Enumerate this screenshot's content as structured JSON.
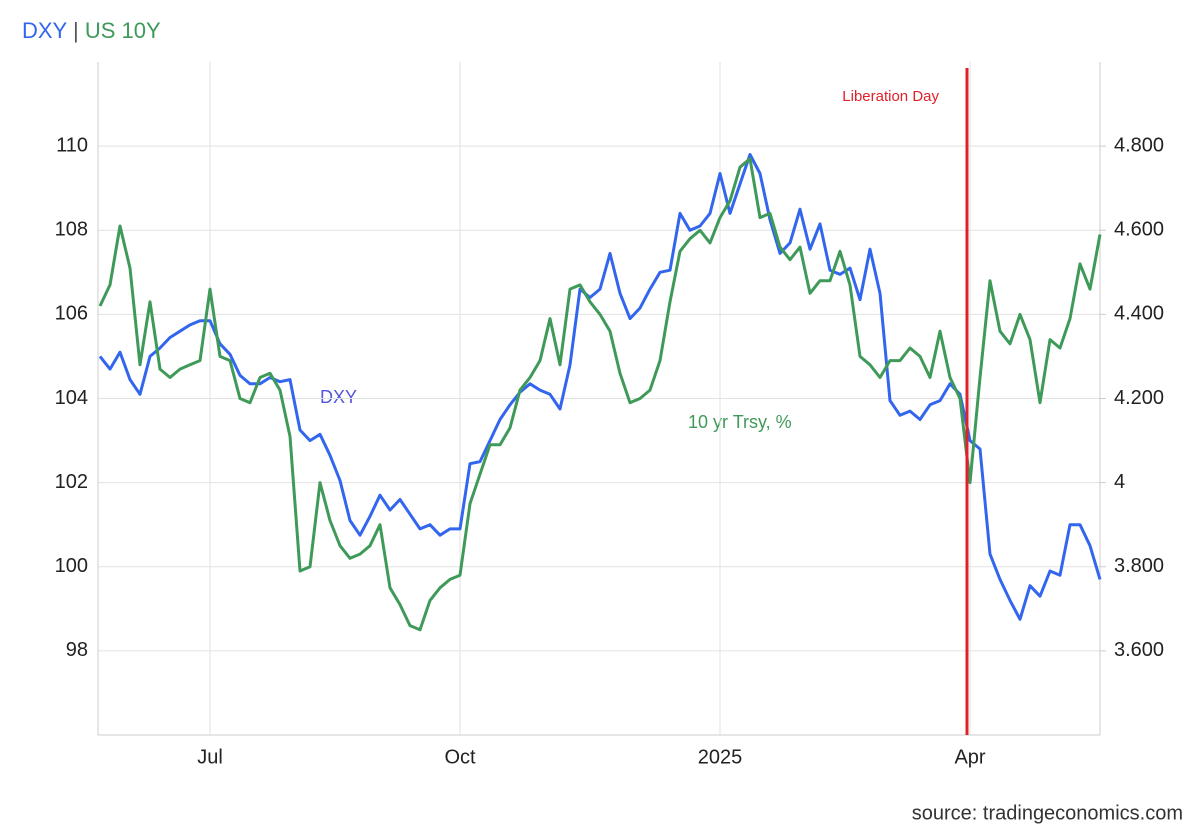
{
  "chart_data": {
    "type": "line",
    "title": [
      "DXY",
      "|",
      "US 10Y"
    ],
    "source": "source: tradingeconomics.com",
    "categories": [
      null,
      null,
      null,
      null,
      null,
      null,
      null,
      null,
      null,
      null,
      null,
      "Jul",
      null,
      null,
      null,
      null,
      null,
      null,
      null,
      null,
      null,
      null,
      null,
      null,
      null,
      null,
      null,
      null,
      null,
      null,
      null,
      null,
      null,
      null,
      null,
      null,
      "Oct",
      null,
      null,
      null,
      null,
      null,
      null,
      null,
      null,
      null,
      null,
      null,
      null,
      null,
      null,
      null,
      null,
      null,
      null,
      null,
      null,
      null,
      null,
      null,
      null,
      null,
      "2025",
      null,
      null,
      null,
      null,
      null,
      null,
      null,
      null,
      null,
      null,
      null,
      null,
      null,
      null,
      null,
      null,
      null,
      null,
      null,
      null,
      null,
      null,
      null,
      null,
      "Apr",
      null,
      null,
      null,
      null,
      null,
      null,
      null,
      null,
      null,
      null,
      null,
      null,
      null
    ],
    "series": [
      {
        "name": "DXY",
        "label": "DXY",
        "color": "#3366ee",
        "axis": "y",
        "values": [
          105.0,
          104.7,
          105.1,
          104.45,
          104.1,
          105.0,
          105.2,
          105.45,
          105.6,
          105.75,
          105.85,
          105.85,
          105.3,
          105.05,
          104.55,
          104.35,
          104.35,
          104.5,
          104.4,
          104.45,
          103.25,
          103.0,
          103.15,
          102.65,
          102.05,
          101.1,
          100.75,
          101.2,
          101.7,
          101.35,
          101.6,
          101.25,
          100.9,
          101.0,
          100.75,
          100.9,
          100.9,
          102.45,
          102.5,
          103.0,
          103.5,
          103.85,
          104.15,
          104.35,
          104.2,
          104.1,
          103.75,
          104.8,
          106.6,
          106.4,
          106.6,
          107.45,
          106.5,
          105.9,
          106.15,
          106.6,
          107.0,
          107.05,
          108.4,
          108.0,
          108.1,
          108.4,
          109.35,
          108.4,
          109.1,
          109.8,
          109.35,
          108.25,
          107.45,
          107.7,
          108.5,
          107.55,
          108.15,
          107.05,
          106.95,
          107.1,
          106.35,
          107.55,
          106.5,
          103.95,
          103.6,
          103.7,
          103.5,
          103.85,
          103.95,
          104.35,
          104.1,
          103.0,
          102.8,
          100.3,
          99.7,
          99.2,
          98.75,
          99.55,
          99.3,
          99.9,
          99.8,
          101.0,
          101.0,
          100.5,
          99.7
        ]
      },
      {
        "name": "US 10Y",
        "label": "10 yr Trsy, %",
        "color": "#3f9a5a",
        "axis": "y2",
        "values": [
          4.42,
          4.47,
          4.61,
          4.51,
          4.28,
          4.43,
          4.27,
          4.25,
          4.27,
          4.28,
          4.29,
          4.46,
          4.3,
          4.29,
          4.2,
          4.19,
          4.25,
          4.26,
          4.22,
          4.11,
          3.79,
          3.8,
          4.0,
          3.91,
          3.85,
          3.82,
          3.83,
          3.85,
          3.9,
          3.75,
          3.71,
          3.66,
          3.65,
          3.72,
          3.75,
          3.77,
          3.78,
          3.95,
          4.02,
          4.09,
          4.09,
          4.13,
          4.22,
          4.25,
          4.29,
          4.39,
          4.28,
          4.46,
          4.47,
          4.43,
          4.4,
          4.36,
          4.26,
          4.19,
          4.2,
          4.22,
          4.29,
          4.43,
          4.55,
          4.58,
          4.6,
          4.57,
          4.63,
          4.67,
          4.75,
          4.77,
          4.63,
          4.64,
          4.56,
          4.53,
          4.56,
          4.45,
          4.48,
          4.48,
          4.55,
          4.47,
          4.3,
          4.28,
          4.25,
          4.29,
          4.29,
          4.32,
          4.3,
          4.25,
          4.36,
          4.25,
          4.2,
          4.0,
          4.25,
          4.48,
          4.36,
          4.33,
          4.4,
          4.34,
          4.19,
          4.34,
          4.32,
          4.39,
          4.52,
          4.46,
          4.59
        ]
      }
    ],
    "ylim": [
      96,
      112
    ],
    "yticks": [
      98,
      100,
      102,
      104,
      106,
      108,
      110
    ],
    "y2lim": [
      3.4,
      5.0
    ],
    "y2ticks": [
      {
        "value": 3.6,
        "label": "3.600"
      },
      {
        "value": 3.8,
        "label": "3.800"
      },
      4,
      {
        "value": 4.2,
        "label": "4.200"
      },
      {
        "value": 4.4,
        "label": "4.400"
      },
      {
        "value": 4.6,
        "label": "4.600"
      },
      {
        "value": 4.8,
        "label": "4.800"
      }
    ],
    "grid": true,
    "annotation": {
      "text": "Liberation Day",
      "category": "Apr",
      "color": "#e0202a"
    }
  }
}
